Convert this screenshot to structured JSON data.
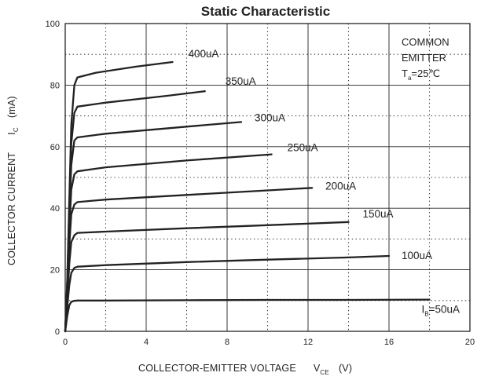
{
  "chart_data": {
    "type": "line",
    "title": "Static Characteristic",
    "xlabel": "COLLECTOR-EMITTER VOLTAGE",
    "xlabel_symbol": "V",
    "xlabel_subscript": "CE",
    "xlabel_unit": "(V)",
    "ylabel": "COLLECTOR  CURRENT",
    "ylabel_symbol": "I",
    "ylabel_subscript": "C",
    "ylabel_unit": "(mA)",
    "xlim": [
      0,
      20
    ],
    "ylim": [
      0,
      100
    ],
    "x_ticks": [
      0,
      4,
      8,
      12,
      16,
      20
    ],
    "y_ticks": [
      0,
      20,
      40,
      60,
      80,
      100
    ],
    "x_minor_grid": [
      2,
      6,
      10,
      14,
      18
    ],
    "y_minor_grid": [
      10,
      30,
      50,
      70,
      90
    ],
    "grid": true,
    "annotation": {
      "line1": "COMMON",
      "line2": "EMITTER",
      "temp_symbol": "T",
      "temp_subscript": "a",
      "temp_value": "=25℃"
    },
    "series": [
      {
        "name": "50uA",
        "label_prefix": "I",
        "label_subscript": "B",
        "label_text": "=50uA",
        "x": [
          0,
          0.1,
          0.2,
          0.3,
          0.45,
          0.6,
          2,
          6,
          10,
          14,
          18
        ],
        "y": [
          0,
          5,
          8.5,
          9.6,
          9.9,
          10,
          10,
          10.1,
          10.2,
          10.2,
          10.3
        ]
      },
      {
        "name": "100uA",
        "label_text": "100uA",
        "x": [
          0,
          0.1,
          0.2,
          0.3,
          0.45,
          0.6,
          2,
          6,
          10,
          14,
          16
        ],
        "y": [
          0,
          8,
          15,
          19,
          20.6,
          21,
          21.5,
          22.5,
          23.3,
          24,
          24.5
        ]
      },
      {
        "name": "150uA",
        "label_text": "150uA",
        "x": [
          0,
          0.1,
          0.2,
          0.3,
          0.45,
          0.6,
          2,
          6,
          10,
          14
        ],
        "y": [
          0,
          10,
          22,
          29,
          31.2,
          32,
          32.4,
          33.5,
          34.5,
          35.5
        ]
      },
      {
        "name": "200uA",
        "label_text": "200uA",
        "x": [
          0,
          0.1,
          0.2,
          0.3,
          0.45,
          0.6,
          2,
          6,
          10,
          12.2
        ],
        "y": [
          0,
          12,
          28,
          38,
          41.2,
          42,
          42.8,
          44.3,
          45.8,
          46.6
        ]
      },
      {
        "name": "250uA",
        "label_text": "250uA",
        "x": [
          0,
          0.1,
          0.2,
          0.3,
          0.45,
          0.6,
          2,
          6,
          10.2
        ],
        "y": [
          0,
          14,
          33,
          46,
          51,
          52,
          53.3,
          55.5,
          57.5
        ]
      },
      {
        "name": "300uA",
        "label_text": "300uA",
        "x": [
          0,
          0.1,
          0.2,
          0.3,
          0.45,
          0.6,
          2,
          6,
          8.7
        ],
        "y": [
          0,
          15,
          37,
          54,
          62,
          63,
          64.2,
          66.5,
          68
        ]
      },
      {
        "name": "350uA",
        "label_text": "350uA",
        "x": [
          0,
          0.1,
          0.2,
          0.3,
          0.45,
          0.6,
          2,
          5,
          6.9
        ],
        "y": [
          0,
          16,
          40,
          61,
          71,
          73,
          74.3,
          76.5,
          78
        ]
      },
      {
        "name": "400uA",
        "label_text": "400uA",
        "x": [
          0,
          0.1,
          0.2,
          0.3,
          0.45,
          0.6,
          1.5,
          3.5,
          5.3
        ],
        "y": [
          0,
          17,
          43,
          67,
          80,
          82.5,
          84,
          86,
          87.5
        ]
      }
    ]
  }
}
